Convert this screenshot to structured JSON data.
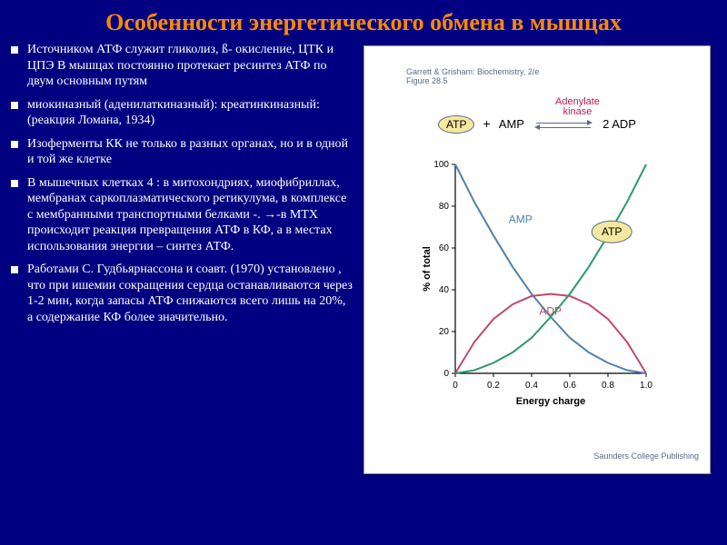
{
  "title": "Особенности энергетического обмена в мышцах",
  "bullets": [
    "Источником  АТФ служит  гликолиз, ß- окисление, ЦТК и ЦПЭ В мышцах постоянно протекает ресинтез АТФ по двум основным путям",
    "миокиназный (аденилаткиназный): креатинкиназный:  (реакция Ломана, 1934)",
    "Изоферменты КК не только в разных органах, но и в одной и той же клетке",
    "В мышечных клетках 4 : в митохондриях, миофибриллах, мембранах саркоплазматического ретикулума, в комплексе  с мембранными транспортными белками -. →-в МТХ  происходит реакция превращения АТФ в КФ, а в местах использования энергии – синтез АТФ.",
    "      Работами С. Гудбьярнассона и соавт. (1970) установлено , что при ишемии сокращения сердца останавливаются через 1-2 мин, когда запасы АТФ снижаются всего лишь на 20%, а содержание КФ  более значительно."
  ],
  "figure": {
    "ref_line1": "Garrett & Grisham: Biochemistry, 2/e",
    "ref_line2": "Figure 28.5",
    "enzyme": "Adenylate\nkinase",
    "reactants": {
      "a": "ATP",
      "b": "AMP",
      "product": "2 ADP"
    },
    "credit": "Saunders College Publishing",
    "ylabel": "% of total",
    "xlabel": "Energy charge",
    "ylim": [
      0,
      100
    ],
    "ytick_step": 20,
    "xlim": [
      0,
      1.0
    ],
    "xtick_step": 0.2,
    "axis_color": "#000000",
    "label_fontsize": 11,
    "tick_fontsize": 10,
    "series": {
      "AMP": {
        "color": "#5080b0",
        "label_pos": [
          0.28,
          72
        ],
        "points": [
          [
            0,
            100
          ],
          [
            0.1,
            82
          ],
          [
            0.2,
            66
          ],
          [
            0.3,
            51
          ],
          [
            0.4,
            38
          ],
          [
            0.5,
            27
          ],
          [
            0.6,
            17
          ],
          [
            0.7,
            10
          ],
          [
            0.8,
            5
          ],
          [
            0.9,
            1.5
          ],
          [
            1.0,
            0
          ]
        ]
      },
      "ADP": {
        "color": "#c04a6a",
        "label_pos": [
          0.44,
          28
        ],
        "points": [
          [
            0,
            0
          ],
          [
            0.1,
            15
          ],
          [
            0.2,
            26
          ],
          [
            0.3,
            33
          ],
          [
            0.4,
            37
          ],
          [
            0.5,
            38
          ],
          [
            0.6,
            37
          ],
          [
            0.7,
            33
          ],
          [
            0.8,
            26
          ],
          [
            0.9,
            15
          ],
          [
            1.0,
            0
          ]
        ]
      },
      "ATP": {
        "color": "#2a9a6a",
        "label_pos_oval": [
          0.82,
          66
        ],
        "points": [
          [
            0,
            0
          ],
          [
            0.1,
            1.5
          ],
          [
            0.2,
            5
          ],
          [
            0.3,
            10
          ],
          [
            0.4,
            17
          ],
          [
            0.5,
            27
          ],
          [
            0.6,
            38
          ],
          [
            0.7,
            51
          ],
          [
            0.8,
            66
          ],
          [
            0.9,
            82
          ],
          [
            1.0,
            100
          ]
        ]
      }
    }
  }
}
